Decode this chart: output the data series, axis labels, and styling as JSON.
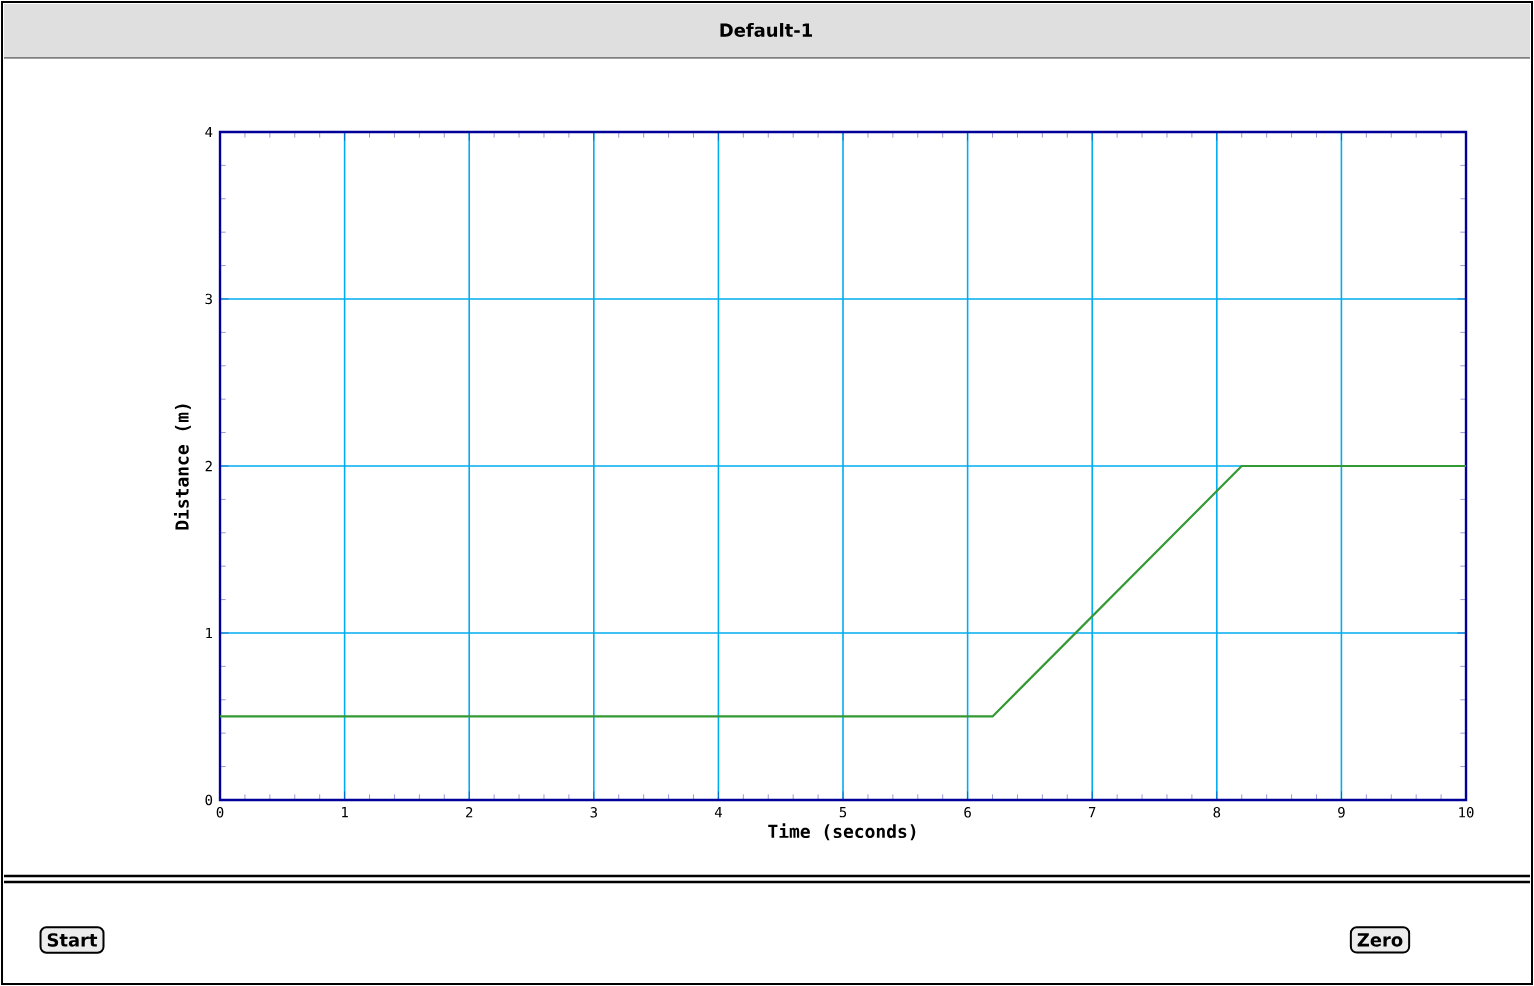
{
  "chart_data": {
    "type": "line",
    "title": "Default-1",
    "xlabel": "Time (seconds)",
    "ylabel": "Distance (m)",
    "x": [
      0,
      6.2,
      8.2,
      10
    ],
    "series": [
      {
        "color": "#339933",
        "values": [
          0.5,
          0.5,
          2,
          2
        ]
      }
    ],
    "xlim": [
      0,
      10
    ],
    "ylim": [
      0,
      4
    ],
    "xticks": [
      0,
      1,
      2,
      3,
      4,
      5,
      6,
      7,
      8,
      9,
      10
    ],
    "yticks": [
      0,
      1,
      2,
      3,
      4
    ],
    "grid": true,
    "annotations": [
      "Start",
      "Zero"
    ]
  }
}
